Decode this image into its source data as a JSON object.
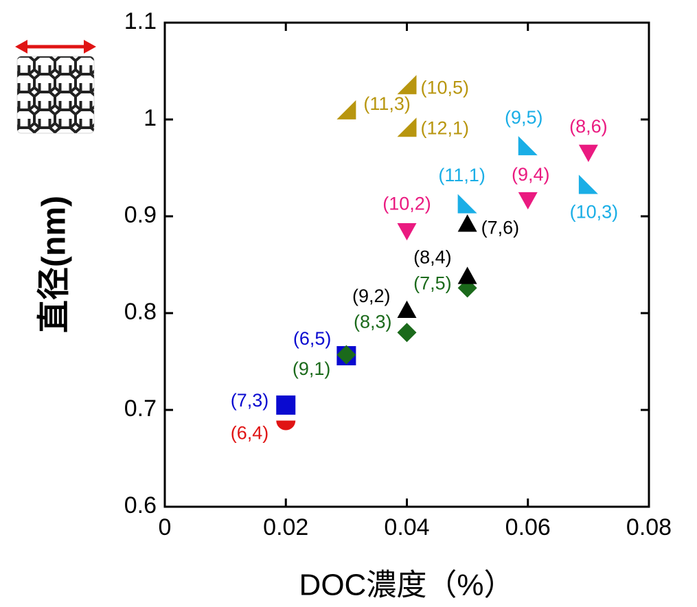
{
  "chart_data": {
    "type": "scatter",
    "xlabel": "DOC濃度（%）",
    "ylabel": "直径(nm)",
    "xlim": [
      0,
      0.08
    ],
    "ylim": [
      0.6,
      1.1
    ],
    "xticks": [
      0,
      0.02,
      0.04,
      0.06,
      0.08
    ],
    "yticks": [
      0.6,
      0.7,
      0.8,
      0.9,
      1,
      1.1
    ],
    "series": [
      {
        "color": "#e01414",
        "marker": "semicircle",
        "x": [
          0.02
        ],
        "values": [
          0.689
        ],
        "labels": [
          "(6,4)"
        ]
      },
      {
        "color": "#0a0ad0",
        "marker": "square",
        "x": [
          0.02,
          0.03
        ],
        "values": [
          0.705,
          0.756
        ],
        "labels": [
          "(7,3)",
          "(6,5)"
        ]
      },
      {
        "color": "#1b6a1b",
        "marker": "diamond",
        "x": [
          0.03,
          0.04,
          0.05
        ],
        "values": [
          0.757,
          0.78,
          0.826
        ],
        "labels": [
          "(9,1)",
          "(8,3)",
          "(7,5)"
        ]
      },
      {
        "color": "#000000",
        "marker": "triangle-up",
        "x": [
          0.04,
          0.05,
          0.05
        ],
        "values": [
          0.803,
          0.838,
          0.892
        ],
        "labels": [
          "(9,2)",
          "(8,4)",
          "(7,6)"
        ]
      },
      {
        "color": "#ea1a80",
        "marker": "triangle-down",
        "x": [
          0.04,
          0.06,
          0.07
        ],
        "values": [
          0.885,
          0.917,
          0.966
        ],
        "labels": [
          "(10,2)",
          "(9,4)",
          "(8,6)"
        ]
      },
      {
        "color": "#1aaee6",
        "marker": "right-triangle-left",
        "x": [
          0.05,
          0.06,
          0.07
        ],
        "values": [
          0.913,
          0.973,
          0.933
        ],
        "labels": [
          "(11,1)",
          "(9,5)",
          "(10,3)"
        ]
      },
      {
        "color": "#b8960f",
        "marker": "right-triangle-right",
        "x": [
          0.04,
          0.03,
          0.04
        ],
        "values": [
          1.036,
          1.01,
          0.992
        ],
        "labels": [
          "(10,5)",
          "(11,3)",
          "(12,1)"
        ]
      }
    ]
  }
}
